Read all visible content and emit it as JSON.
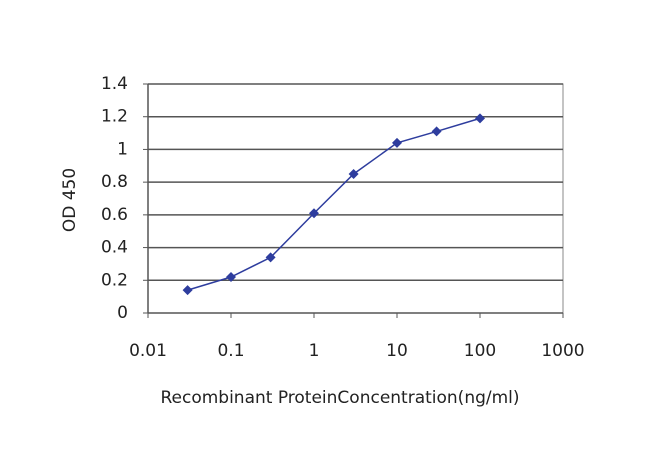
{
  "chart_data": {
    "type": "line",
    "x_label": "Recombinant ProteinConcentration(ng/ml)",
    "y_label": "OD 450",
    "x": [
      0.03,
      0.1,
      0.3,
      1,
      3,
      10,
      30,
      100
    ],
    "values": [
      0.14,
      0.22,
      0.34,
      0.61,
      0.85,
      1.04,
      1.11,
      1.19
    ],
    "color": "#2e3d9e",
    "xscale": "log",
    "xlim": [
      0.01,
      1000
    ],
    "xticks": [
      0.01,
      0.1,
      1,
      10,
      100,
      1000
    ],
    "ylim": [
      0,
      1.4
    ],
    "yticks": [
      0,
      0.2,
      0.4,
      0.6,
      0.8,
      1,
      1.2,
      1.4
    ],
    "grid": true
  }
}
